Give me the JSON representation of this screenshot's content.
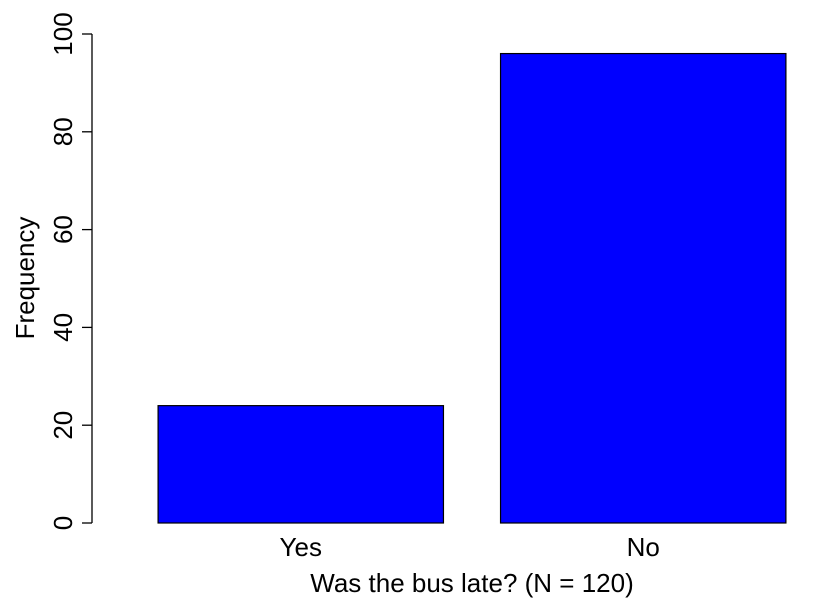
{
  "chart_data": {
    "type": "bar",
    "categories": [
      "Yes",
      "No"
    ],
    "values": [
      24,
      96
    ],
    "xlabel": "Was the bus late? (N = 120)",
    "ylabel": "Frequency",
    "ylim": [
      0,
      100
    ],
    "yticks": [
      0,
      20,
      40,
      60,
      80,
      100
    ],
    "bar_color": "#0000ff",
    "bar_border_color": "#000000",
    "grid": false,
    "legend": "none"
  }
}
